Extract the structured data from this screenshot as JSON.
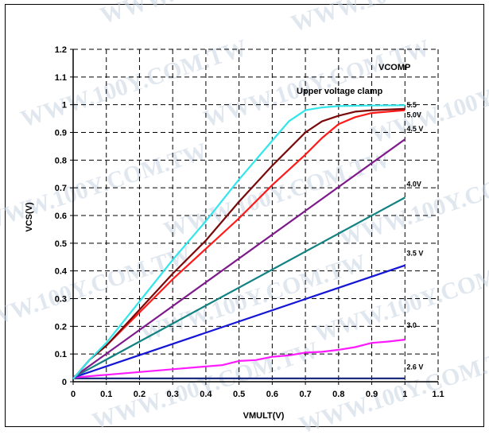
{
  "watermark": {
    "text": "WWW.100Y.COM.TW",
    "color": "#c8d4e2"
  },
  "chart_data": {
    "type": "line",
    "title": "VCOMP",
    "subtitle": "Upper voltage clamp",
    "xlabel": "VMULT(V)",
    "ylabel": "VCS(V)",
    "xlim": [
      0,
      1.1
    ],
    "ylim": [
      0,
      1.2
    ],
    "xticks": [
      "0",
      "0.1",
      "0.2",
      "0.3",
      "0.4",
      "0.5",
      "0.6",
      "0.7",
      "0.8",
      "0.9",
      "1",
      "1.1"
    ],
    "yticks": [
      "0",
      "0.1",
      "0.2",
      "0.3",
      "0.4",
      "0.5",
      "0.6",
      "0.7",
      "0.8",
      "0.9",
      "1",
      "1.1",
      "1.2"
    ],
    "grid": true,
    "legend": "labels at line ends",
    "series": [
      {
        "name": "5.5",
        "color": "#33e6ea",
        "x": [
          0,
          0.05,
          0.1,
          0.2,
          0.3,
          0.4,
          0.5,
          0.6,
          0.65,
          0.7,
          0.75,
          0.8,
          0.9,
          1.0
        ],
        "y": [
          0.01,
          0.08,
          0.14,
          0.29,
          0.44,
          0.58,
          0.73,
          0.87,
          0.94,
          0.98,
          0.99,
          0.995,
          0.997,
          0.998
        ]
      },
      {
        "name": "5.0V",
        "color": "#7a0a0a",
        "x": [
          0,
          0.05,
          0.1,
          0.2,
          0.3,
          0.4,
          0.5,
          0.6,
          0.7,
          0.75,
          0.8,
          0.85,
          0.9,
          1.0
        ],
        "y": [
          0.01,
          0.08,
          0.13,
          0.26,
          0.39,
          0.51,
          0.65,
          0.78,
          0.9,
          0.94,
          0.96,
          0.975,
          0.98,
          0.985
        ]
      },
      {
        "name": "4.5 V",
        "color": "#ff1a1a",
        "x": [
          0,
          0.05,
          0.1,
          0.2,
          0.3,
          0.4,
          0.5,
          0.6,
          0.7,
          0.75,
          0.8,
          0.85,
          0.9,
          1.0
        ],
        "y": [
          0.01,
          0.08,
          0.13,
          0.25,
          0.37,
          0.48,
          0.59,
          0.71,
          0.82,
          0.88,
          0.93,
          0.955,
          0.97,
          0.98
        ]
      },
      {
        "name": "4.0V",
        "color": "#7f1a8c",
        "x": [
          0,
          1.0
        ],
        "y": [
          0.015,
          0.875
        ]
      },
      {
        "name": "3.5 V",
        "color": "#138282",
        "x": [
          0,
          1.0
        ],
        "y": [
          0.015,
          0.665
        ]
      },
      {
        "name": "3.0",
        "color": "#1515d6",
        "x": [
          0,
          1.0
        ],
        "y": [
          0.015,
          0.42
        ]
      },
      {
        "name": "2.6 V",
        "color": "#ff1aff",
        "x": [
          0,
          0.1,
          0.2,
          0.3,
          0.4,
          0.45,
          0.5,
          0.55,
          0.6,
          0.65,
          0.7,
          0.75,
          0.8,
          0.85,
          0.9,
          0.95,
          1.0
        ],
        "y": [
          0.015,
          0.025,
          0.035,
          0.045,
          0.055,
          0.06,
          0.075,
          0.078,
          0.09,
          0.095,
          0.105,
          0.108,
          0.115,
          0.125,
          0.14,
          0.145,
          0.152
        ]
      },
      {
        "name": "",
        "color": "#10207a",
        "x": [
          0,
          1.0
        ],
        "y": [
          0.012,
          0.012
        ]
      }
    ],
    "end_labels": [
      {
        "text": "5.5",
        "x": 1.005,
        "y": 0.99
      },
      {
        "text": "5.0V",
        "x": 1.005,
        "y": 0.955
      },
      {
        "text": "4.5 V",
        "x": 1.005,
        "y": 0.905
      },
      {
        "text": "4.0V",
        "x": 1.005,
        "y": 0.705
      },
      {
        "text": "3.5 V",
        "x": 1.005,
        "y": 0.455
      },
      {
        "text": "3.0",
        "x": 1.005,
        "y": 0.195
      },
      {
        "text": "2.6 V",
        "x": 1.005,
        "y": 0.045
      }
    ]
  }
}
